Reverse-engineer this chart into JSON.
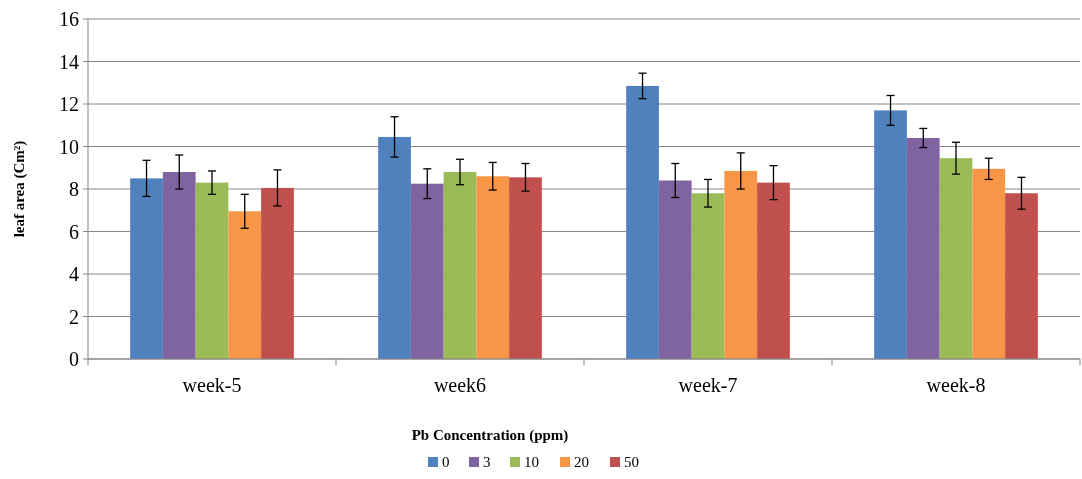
{
  "chart_data": {
    "type": "bar",
    "xlabel": "Pb Concentration (ppm)",
    "ylabel": "leaf area (Cm²)",
    "categories": [
      "week-5",
      "week6",
      "week-7",
      "week-8"
    ],
    "series": [
      {
        "name": "0",
        "color": "#4f81bd",
        "values": [
          8.5,
          10.45,
          12.85,
          11.7
        ],
        "errors": [
          0.85,
          0.95,
          0.6,
          0.7
        ]
      },
      {
        "name": "3",
        "color": "#8064a2",
        "values": [
          8.8,
          8.25,
          8.4,
          10.4
        ],
        "errors": [
          0.8,
          0.7,
          0.8,
          0.45
        ]
      },
      {
        "name": "10",
        "color": "#9bbb59",
        "values": [
          8.3,
          8.8,
          7.8,
          9.45
        ],
        "errors": [
          0.55,
          0.6,
          0.65,
          0.75
        ]
      },
      {
        "name": "20",
        "color": "#f79646",
        "values": [
          6.95,
          8.6,
          8.85,
          8.95
        ],
        "errors": [
          0.8,
          0.65,
          0.85,
          0.5
        ]
      },
      {
        "name": "50",
        "color": "#c0504d",
        "values": [
          8.05,
          8.55,
          8.3,
          7.8
        ],
        "errors": [
          0.85,
          0.65,
          0.8,
          0.75
        ]
      }
    ],
    "ylim": [
      0,
      16
    ],
    "yticks": [
      0,
      2,
      4,
      6,
      8,
      10,
      12,
      14,
      16
    ],
    "grid": "y",
    "legend": "bottom"
  }
}
